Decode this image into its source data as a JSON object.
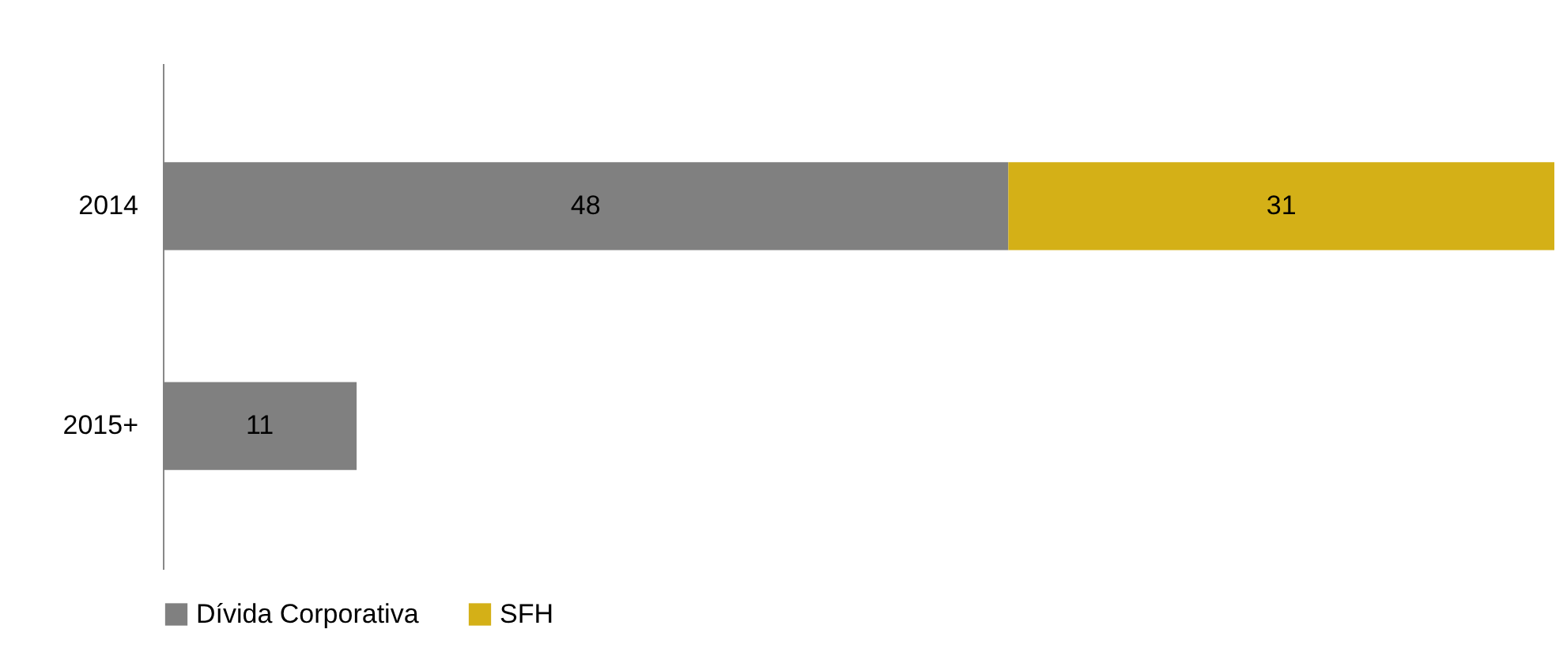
{
  "chart_data": {
    "type": "bar",
    "orientation": "horizontal",
    "stacked": true,
    "categories": [
      "2014",
      "2015+"
    ],
    "series": [
      {
        "name": "Dívida Corporativa",
        "color": "#808080",
        "values": [
          48,
          11
        ]
      },
      {
        "name": "SFH",
        "color": "#d4b017",
        "values": [
          31,
          null
        ]
      }
    ],
    "data_labels": true,
    "legend": "bottom",
    "grid": false
  }
}
